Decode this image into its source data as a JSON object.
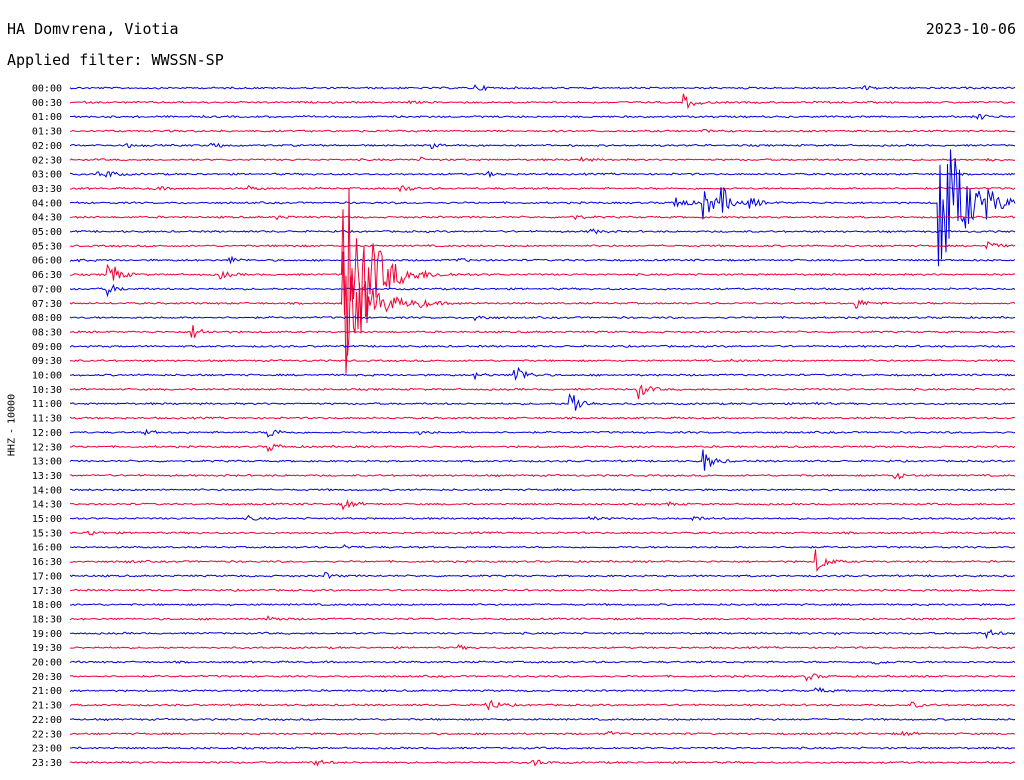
{
  "header": {
    "station": "HA Domvrena, Viotia",
    "date": "2023-10-06",
    "filter": "Applied filter: WWSSN-SP"
  },
  "axis": {
    "channel": "HHZ",
    "separator": "-",
    "scale": "10000"
  },
  "colors": {
    "blue": "#0000dd",
    "red": "#ee0033"
  },
  "chart_data": {
    "type": "line",
    "title": "",
    "xlabel": "",
    "ylabel": "HHZ - 10000",
    "rows": [
      {
        "label": "00:00",
        "events": [
          {
            "t": 0.43,
            "a": 3
          },
          {
            "t": 0.84,
            "a": 2
          }
        ]
      },
      {
        "label": "00:30",
        "events": [
          {
            "t": 0.65,
            "a": 8
          },
          {
            "t": 0.36,
            "a": 1
          }
        ]
      },
      {
        "label": "01:00",
        "events": [
          {
            "t": 0.96,
            "a": 3
          }
        ]
      },
      {
        "label": "01:30",
        "events": [
          {
            "t": 0.67,
            "a": 1
          }
        ]
      },
      {
        "label": "02:00",
        "events": [
          {
            "t": 0.06,
            "a": 2
          },
          {
            "t": 0.15,
            "a": 3
          },
          {
            "t": 0.38,
            "a": 3
          }
        ]
      },
      {
        "label": "02:30",
        "events": [
          {
            "t": 0.37,
            "a": 2
          },
          {
            "t": 0.54,
            "a": 2
          },
          {
            "t": 0.97,
            "a": 2
          }
        ]
      },
      {
        "label": "03:00",
        "events": [
          {
            "t": 0.03,
            "a": 2
          },
          {
            "t": 0.04,
            "a": 3
          },
          {
            "t": 0.44,
            "a": 3
          }
        ]
      },
      {
        "label": "03:30",
        "events": [
          {
            "t": 0.09,
            "a": 2
          },
          {
            "t": 0.19,
            "a": 2
          },
          {
            "t": 0.35,
            "a": 4
          }
        ]
      },
      {
        "label": "04:00",
        "events": [
          {
            "t": 0.64,
            "a": 9
          },
          {
            "t": 0.67,
            "a": 20
          },
          {
            "t": 0.69,
            "a": 14
          },
          {
            "t": 0.72,
            "a": 6
          },
          {
            "t": 0.92,
            "a": 90
          },
          {
            "t": 0.97,
            "a": 7
          }
        ]
      },
      {
        "label": "04:30",
        "events": [
          {
            "t": 0.53,
            "a": 3
          },
          {
            "t": 0.22,
            "a": 2
          }
        ]
      },
      {
        "label": "05:00",
        "events": [
          {
            "t": 0.55,
            "a": 3
          }
        ]
      },
      {
        "label": "05:30",
        "events": [
          {
            "t": 0.97,
            "a": 5
          },
          {
            "t": 0.23,
            "a": 1
          }
        ]
      },
      {
        "label": "06:00",
        "events": [
          {
            "t": 0.0,
            "a": 2
          },
          {
            "t": 0.17,
            "a": 3
          },
          {
            "t": 0.41,
            "a": 2
          }
        ]
      },
      {
        "label": "06:30",
        "events": [
          {
            "t": 0.04,
            "a": 18
          },
          {
            "t": 0.16,
            "a": 4
          },
          {
            "t": 0.29,
            "a": 130
          }
        ]
      },
      {
        "label": "07:00",
        "events": [
          {
            "t": 0.04,
            "a": 6
          }
        ]
      },
      {
        "label": "07:30",
        "events": [
          {
            "t": 0.29,
            "a": 60
          },
          {
            "t": 0.37,
            "a": 3
          },
          {
            "t": 0.83,
            "a": 6
          }
        ]
      },
      {
        "label": "08:00",
        "events": [
          {
            "t": 0.43,
            "a": 3
          }
        ]
      },
      {
        "label": "08:30",
        "events": [
          {
            "t": 0.13,
            "a": 7
          }
        ]
      },
      {
        "label": "09:00",
        "events": []
      },
      {
        "label": "09:30",
        "events": [
          {
            "t": 0.7,
            "a": 1
          }
        ]
      },
      {
        "label": "10:00",
        "events": [
          {
            "t": 0.43,
            "a": 3
          },
          {
            "t": 0.47,
            "a": 14
          }
        ]
      },
      {
        "label": "10:30",
        "events": [
          {
            "t": 0.6,
            "a": 10
          }
        ]
      },
      {
        "label": "11:00",
        "events": [
          {
            "t": 0.53,
            "a": 16
          },
          {
            "t": 0.78,
            "a": 3
          }
        ]
      },
      {
        "label": "11:30",
        "events": []
      },
      {
        "label": "12:00",
        "events": [
          {
            "t": 0.08,
            "a": 2
          },
          {
            "t": 0.21,
            "a": 6
          },
          {
            "t": 0.37,
            "a": 2
          }
        ]
      },
      {
        "label": "12:30",
        "events": [
          {
            "t": 0.21,
            "a": 5
          }
        ]
      },
      {
        "label": "13:00",
        "events": [
          {
            "t": 0.67,
            "a": 12
          }
        ]
      },
      {
        "label": "13:30",
        "events": [
          {
            "t": 0.87,
            "a": 5
          }
        ]
      },
      {
        "label": "14:00",
        "events": []
      },
      {
        "label": "14:30",
        "events": [
          {
            "t": 0.29,
            "a": 6
          },
          {
            "t": 0.63,
            "a": 2
          }
        ]
      },
      {
        "label": "15:00",
        "events": [
          {
            "t": 0.19,
            "a": 2
          },
          {
            "t": 0.55,
            "a": 2
          },
          {
            "t": 0.66,
            "a": 2
          }
        ]
      },
      {
        "label": "15:30",
        "events": [
          {
            "t": 0.02,
            "a": 3
          }
        ]
      },
      {
        "label": "16:00",
        "events": [
          {
            "t": 0.29,
            "a": 2
          }
        ]
      },
      {
        "label": "16:30",
        "events": [
          {
            "t": 0.79,
            "a": 12
          },
          {
            "t": 0.06,
            "a": 1
          }
        ]
      },
      {
        "label": "17:00",
        "events": [
          {
            "t": 0.27,
            "a": 3
          }
        ]
      },
      {
        "label": "17:30",
        "events": []
      },
      {
        "label": "18:00",
        "events": []
      },
      {
        "label": "18:30",
        "events": [
          {
            "t": 0.21,
            "a": 3
          }
        ]
      },
      {
        "label": "19:00",
        "events": [
          {
            "t": 0.97,
            "a": 4
          },
          {
            "t": 0.81,
            "a": 1
          }
        ]
      },
      {
        "label": "19:30",
        "events": [
          {
            "t": 0.41,
            "a": 2
          }
        ]
      },
      {
        "label": "20:00",
        "events": [
          {
            "t": 0.85,
            "a": 3
          }
        ]
      },
      {
        "label": "20:30",
        "events": [
          {
            "t": 0.78,
            "a": 4
          }
        ]
      },
      {
        "label": "21:00",
        "events": [
          {
            "t": 0.79,
            "a": 3
          }
        ]
      },
      {
        "label": "21:30",
        "events": [
          {
            "t": 0.44,
            "a": 8
          },
          {
            "t": 0.89,
            "a": 3
          }
        ]
      },
      {
        "label": "22:00",
        "events": []
      },
      {
        "label": "22:30",
        "events": [
          {
            "t": 0.57,
            "a": 2
          },
          {
            "t": 0.88,
            "a": 2
          }
        ]
      },
      {
        "label": "23:00",
        "events": []
      },
      {
        "label": "23:30",
        "events": [
          {
            "t": 0.26,
            "a": 3
          },
          {
            "t": 0.49,
            "a": 4
          }
        ]
      }
    ]
  }
}
